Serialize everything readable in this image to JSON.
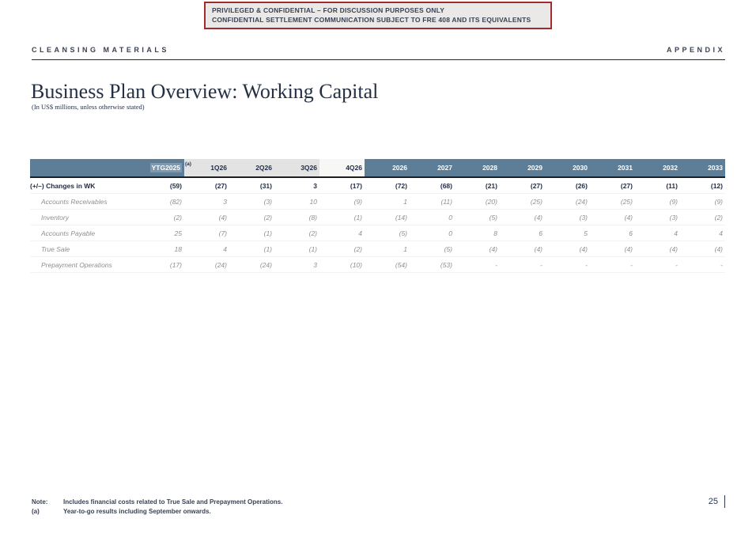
{
  "banner": {
    "line1": "PRIVILEGED & CONFIDENTIAL – FOR DISCUSSION PURPOSES ONLY",
    "line2": "CONFIDENTIAL SETTLEMENT COMMUNICATION SUBJECT TO FRE 408 AND ITS EQUIVALENTS"
  },
  "topbar": {
    "left": "CLEANSING MATERIALS",
    "right": "APPENDIX"
  },
  "title": "Business Plan Overview: Working Capital",
  "subtitle": "(In US$ millions, unless otherwise stated)",
  "table": {
    "superscript": "(a)",
    "columns": [
      "YTG2025",
      "1Q26",
      "2Q26",
      "3Q26",
      "4Q26",
      "2026",
      "2027",
      "2028",
      "2029",
      "2030",
      "2031",
      "2032",
      "2033"
    ],
    "rows": [
      {
        "label": "(+/–) Changes in WK",
        "bold": true,
        "values": [
          "(59)",
          "(27)",
          "(31)",
          "3",
          "(17)",
          "(72)",
          "(68)",
          "(21)",
          "(27)",
          "(26)",
          "(27)",
          "(11)",
          "(12)"
        ]
      },
      {
        "label": "Accounts Receivables",
        "bold": false,
        "values": [
          "(82)",
          "3",
          "(3)",
          "10",
          "(9)",
          "1",
          "(11)",
          "(20)",
          "(25)",
          "(24)",
          "(25)",
          "(9)",
          "(9)"
        ]
      },
      {
        "label": "Inventory",
        "bold": false,
        "values": [
          "(2)",
          "(4)",
          "(2)",
          "(8)",
          "(1)",
          "(14)",
          "0",
          "(5)",
          "(4)",
          "(3)",
          "(4)",
          "(3)",
          "(2)"
        ]
      },
      {
        "label": "Accounts Payable",
        "bold": false,
        "values": [
          "25",
          "(7)",
          "(1)",
          "(2)",
          "4",
          "(5)",
          "0",
          "8",
          "6",
          "5",
          "6",
          "4",
          "4"
        ]
      },
      {
        "label": "True Sale",
        "bold": false,
        "values": [
          "18",
          "4",
          "(1)",
          "(1)",
          "(2)",
          "1",
          "(5)",
          "(4)",
          "(4)",
          "(4)",
          "(4)",
          "(4)",
          "(4)"
        ]
      },
      {
        "label": "Prepayment Operations",
        "bold": false,
        "values": [
          "(17)",
          "(24)",
          "(24)",
          "3",
          "(10)",
          "(54)",
          "(53)",
          "-",
          "-",
          "-",
          "-",
          "-",
          "-"
        ]
      }
    ]
  },
  "notes": [
    {
      "label": "Note:",
      "text": "Includes financial costs related to True Sale and Prepayment Operations."
    },
    {
      "label": "(a)",
      "text": "Year-to-go results including September onwards."
    }
  ],
  "page_number": "25",
  "colors": {
    "header_dark": "#5e7e97",
    "header_light": "#e3e3e3",
    "header_light_4q": "#f7f7f6",
    "ytg_highlight": "#7e99ae",
    "navy": "#222e48",
    "gray_italic": "#8f8f8f",
    "banner_border": "#a12c2c",
    "banner_bg": "#eae9e7",
    "text_dark": "#3a4254"
  }
}
